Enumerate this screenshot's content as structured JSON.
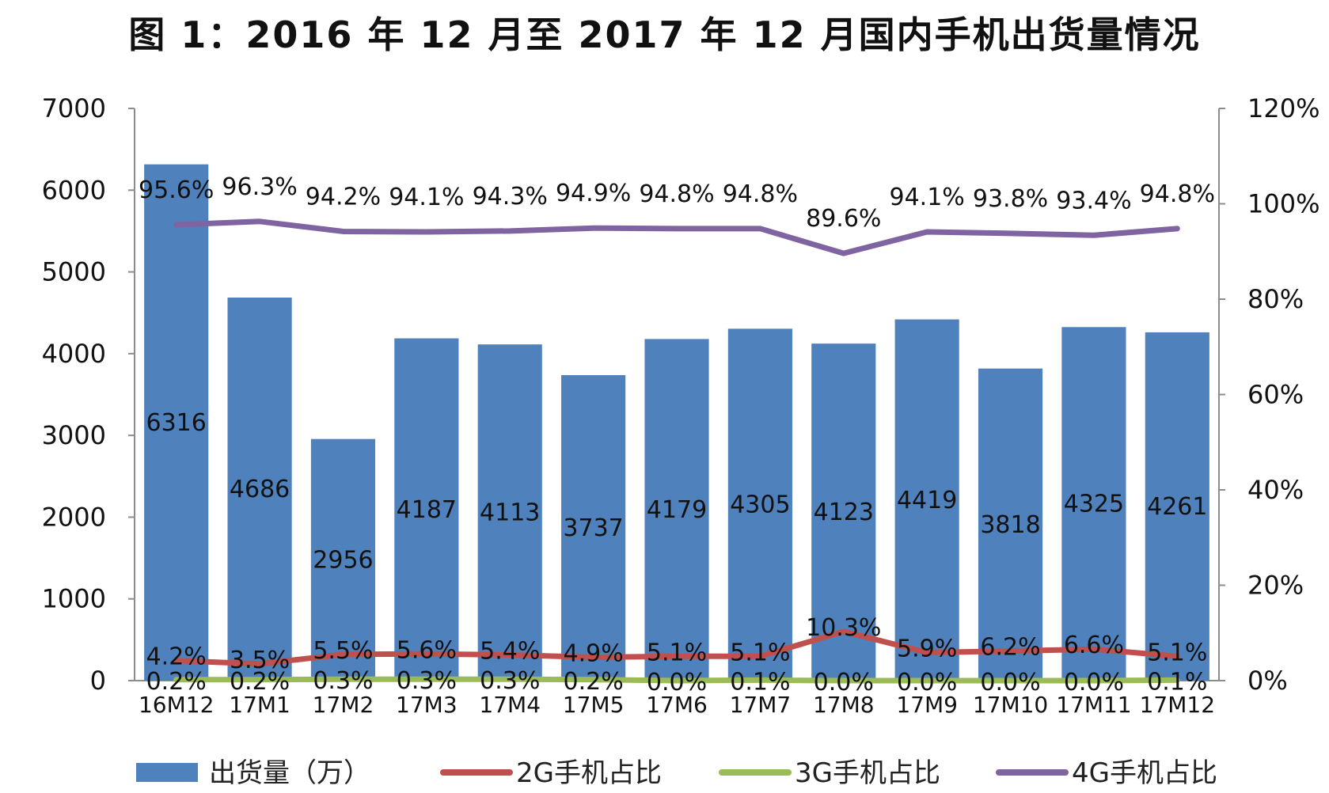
{
  "chart_data": {
    "type": "bar",
    "title": "图 1：2016 年 12 月至 2017 年 12 月国内手机出货量情况",
    "categories": [
      "16M12",
      "17M1",
      "17M2",
      "17M3",
      "17M4",
      "17M5",
      "17M6",
      "17M7",
      "17M8",
      "17M9",
      "17M10",
      "17M11",
      "17M12"
    ],
    "y_left": {
      "min": 0,
      "max": 7000,
      "step": 1000,
      "ticks": [
        "0",
        "1000",
        "2000",
        "3000",
        "4000",
        "5000",
        "6000",
        "7000"
      ]
    },
    "y_right": {
      "min": 0,
      "max": 1.2,
      "step": 0.2,
      "ticks": [
        "0%",
        "20%",
        "40%",
        "60%",
        "80%",
        "100%",
        "120%"
      ]
    },
    "grid": false,
    "legend_position": "bottom",
    "bars": {
      "name": "出货量（万）",
      "color": "#4F81BD",
      "values": [
        6316,
        4686,
        2956,
        4187,
        4113,
        3737,
        4179,
        4305,
        4123,
        4419,
        3818,
        4325,
        4261
      ],
      "labels": [
        "6316",
        "4686",
        "2956",
        "4187",
        "4113",
        "3737",
        "4179",
        "4305",
        "4123",
        "4419",
        "3818",
        "4325",
        "4261"
      ]
    },
    "lines": [
      {
        "name": "2G手机占比",
        "color": "#C0504D",
        "values": [
          0.042,
          0.035,
          0.055,
          0.056,
          0.054,
          0.049,
          0.051,
          0.051,
          0.103,
          0.059,
          0.062,
          0.066,
          0.051
        ],
        "labels": [
          "4.2%",
          "3.5%",
          "5.5%",
          "5.6%",
          "5.4%",
          "4.9%",
          "5.1%",
          "5.1%",
          "10.3%",
          "5.9%",
          "6.2%",
          "6.6%",
          "5.1%"
        ]
      },
      {
        "name": "3G手机占比",
        "color": "#9BBB59",
        "values": [
          0.002,
          0.002,
          0.003,
          0.003,
          0.003,
          0.002,
          0.0,
          0.001,
          0.0,
          0.0,
          0.0,
          0.0,
          0.001
        ],
        "labels": [
          "0.2%",
          "0.2%",
          "0.3%",
          "0.3%",
          "0.3%",
          "0.2%",
          "0.0%",
          "0.1%",
          "0.0%",
          "0.0%",
          "0.0%",
          "0.0%",
          "0.1%"
        ]
      },
      {
        "name": "4G手机占比",
        "color": "#8064A2",
        "values": [
          0.956,
          0.963,
          0.942,
          0.941,
          0.943,
          0.949,
          0.948,
          0.948,
          0.896,
          0.941,
          0.938,
          0.934,
          0.948
        ],
        "labels": [
          "95.6%",
          "96.3%",
          "94.2%",
          "94.1%",
          "94.3%",
          "94.9%",
          "94.8%",
          "94.8%",
          "89.6%",
          "94.1%",
          "93.8%",
          "93.4%",
          "94.8%"
        ]
      }
    ]
  }
}
